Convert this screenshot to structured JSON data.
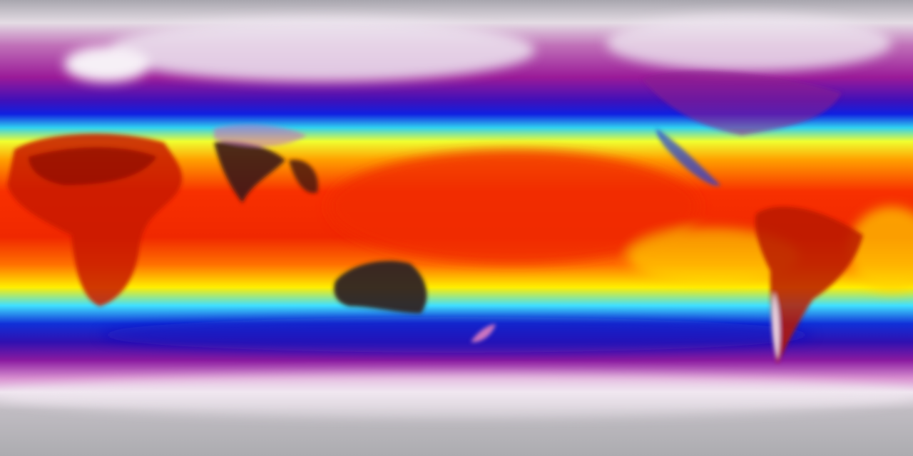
{
  "map": {
    "color_scale": [
      "#b0b0b4",
      "#f0e6f0",
      "#a0209a",
      "#1010d0",
      "#30d8f8",
      "#ffff20",
      "#ff9000",
      "#f02000",
      "#3a2020"
    ]
  }
}
